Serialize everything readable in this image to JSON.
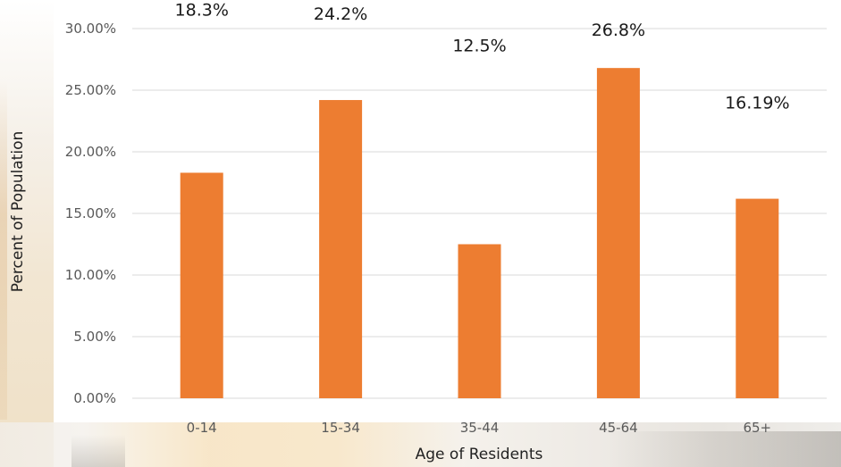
{
  "chart_data": {
    "type": "bar",
    "categories": [
      "0-14",
      "15-34",
      "35-44",
      "45-64",
      "65+"
    ],
    "values": [
      18.3,
      24.2,
      12.5,
      26.8,
      16.19
    ],
    "data_labels": [
      "18.3%",
      "24.2%",
      "12.5%",
      "26.8%",
      "16.19%"
    ],
    "yticks": [
      "0.00%",
      "5.00%",
      "10.00%",
      "15.00%",
      "20.00%",
      "25.00%",
      "30.00%"
    ],
    "ytick_values": [
      0,
      5,
      10,
      15,
      20,
      25,
      30
    ],
    "ylim": [
      0,
      30
    ],
    "xlabel": "Age of Residents",
    "ylabel": "Percent of Population",
    "grid": true,
    "legend": "none",
    "bar_color": "#ed7d31",
    "grid_color": "#d9d9d9"
  }
}
